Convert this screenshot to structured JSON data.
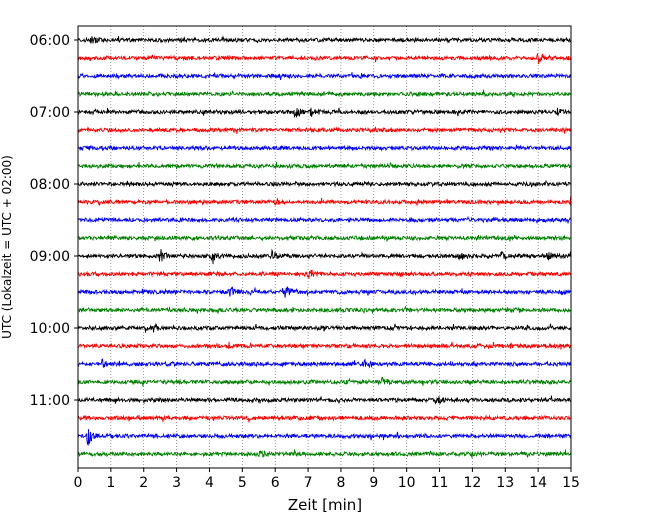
{
  "chart_data": {
    "type": "line",
    "chart_kind": "helicorder",
    "xlabel": "Zeit  [min]",
    "ylabel": "UTC (Lokalzeit = UTC + 02:00)",
    "xlim": [
      0,
      15
    ],
    "x_ticks": [
      "0",
      "1",
      "2",
      "3",
      "4",
      "5",
      "6",
      "7",
      "8",
      "9",
      "10",
      "11",
      "12",
      "13",
      "14",
      "15"
    ],
    "y_tick_labels": [
      "06:00",
      "07:00",
      "08:00",
      "09:00",
      "10:00",
      "11:00"
    ],
    "trace_interval_min": 15,
    "trace_colors": [
      "#000000",
      "#ff0000",
      "#0000ff",
      "#008000"
    ],
    "vertical_gridlines": "dotted",
    "start_time": "06:00",
    "end_time": "12:00",
    "events": [
      {
        "time": "06:00",
        "x": 0.4,
        "strength": 0.5
      },
      {
        "time": "06:15",
        "x": 14.0,
        "strength": 0.6
      },
      {
        "time": "07:00",
        "x": 6.6,
        "strength": 0.7
      },
      {
        "time": "07:00",
        "x": 7.1,
        "strength": 0.55
      },
      {
        "time": "07:00",
        "x": 14.6,
        "strength": 0.4
      },
      {
        "time": "08:15",
        "x": 6.0,
        "strength": 0.4
      },
      {
        "time": "08:15",
        "x": 15.0,
        "strength": 0.6
      },
      {
        "time": "09:00",
        "x": 2.5,
        "strength": 0.8
      },
      {
        "time": "09:00",
        "x": 4.1,
        "strength": 0.8
      },
      {
        "time": "09:00",
        "x": 5.9,
        "strength": 0.55
      },
      {
        "time": "09:00",
        "x": 11.6,
        "strength": 0.5
      },
      {
        "time": "09:00",
        "x": 12.9,
        "strength": 0.6
      },
      {
        "time": "09:00",
        "x": 14.3,
        "strength": 0.45
      },
      {
        "time": "09:15",
        "x": 7.0,
        "strength": 0.7
      },
      {
        "time": "09:30",
        "x": 4.6,
        "strength": 0.8
      },
      {
        "time": "09:30",
        "x": 6.3,
        "strength": 0.95
      },
      {
        "time": "10:00",
        "x": 2.3,
        "strength": 0.4
      },
      {
        "time": "10:30",
        "x": 0.7,
        "strength": 0.5
      },
      {
        "time": "10:30",
        "x": 8.7,
        "strength": 0.45
      },
      {
        "time": "10:45",
        "x": 9.2,
        "strength": 0.55
      },
      {
        "time": "11:00",
        "x": 10.9,
        "strength": 0.4
      },
      {
        "time": "11:30",
        "x": 0.3,
        "strength": 1.0
      },
      {
        "time": "11:45",
        "x": 5.5,
        "strength": 0.6
      }
    ]
  }
}
